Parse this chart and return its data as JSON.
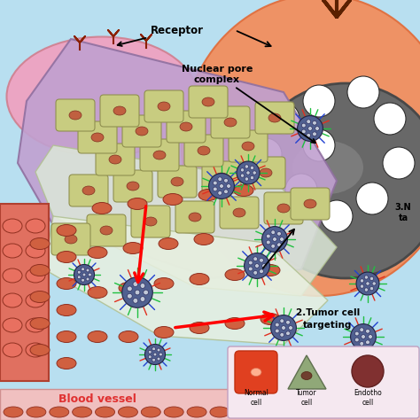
{
  "bg_color": "#b8dff0",
  "orange_cell_color": "#f09060",
  "orange_cell_edge": "#e07040",
  "nucleus_gray": "#686868",
  "nucleus_edge": "#484848",
  "nucleus_highlight": "#909090",
  "pink_cell_color": "#f0a0c0",
  "pink_cell_edge": "#d08090",
  "purple_tissue": "#c0a0d0",
  "purple_tissue_edge": "#9070a0",
  "tissue_bg_color": "#e8f0e0",
  "tissue_cell_color": "#c8cc80",
  "tissue_cell_edge": "#909050",
  "rbc_color": "#d06040",
  "rbc_edge": "#903020",
  "bv_left_color": "#e07060",
  "bv_left_edge": "#b04030",
  "npc_label": "Nuclear pore\ncomplex",
  "receptor_label": "Receptor",
  "blood_vessel_label": "Blood vessel",
  "tumor_targeting_label": "2.Tumor cell\ntargeting",
  "nuclear_targeting_label": "3.N\nta",
  "normal_cell_label": "Normal\ncell",
  "tumor_cell_label": "Tumor\ncell",
  "endothelial_label": "Endotho\ncell",
  "legend_bg": "#f5e8f0",
  "nano_core": "#506090",
  "nano_dots": "#c0c8d8"
}
